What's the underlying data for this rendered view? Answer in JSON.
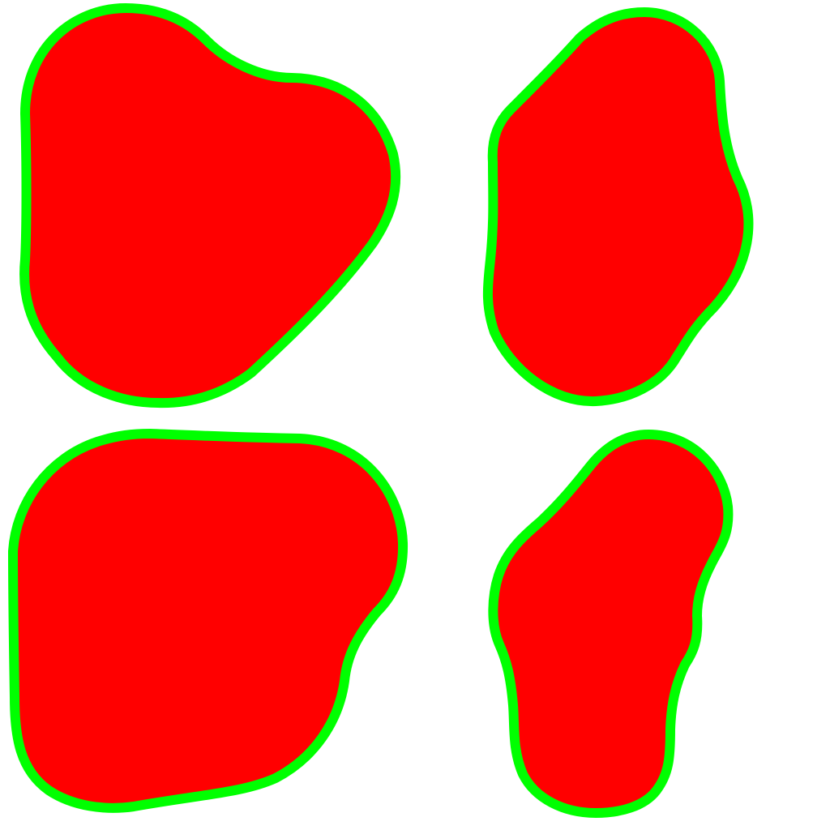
{
  "colors": {
    "background": "#ffffff",
    "fill": "#ff0000",
    "outline": "#00ff00"
  },
  "blobs": [
    {
      "name": "blob-top-left"
    },
    {
      "name": "blob-top-right"
    },
    {
      "name": "blob-bottom-left"
    },
    {
      "name": "blob-bottom-right"
    }
  ]
}
